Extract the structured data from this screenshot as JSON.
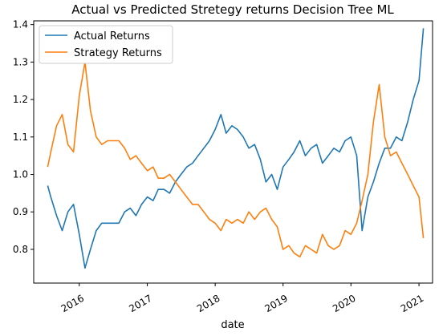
{
  "chart_data": {
    "type": "line",
    "title": "Actual vs Predicted Stretegy returns Decision Tree ML",
    "xlabel": "date",
    "ylabel": "",
    "x_ticks": [
      "2016",
      "2017",
      "2018",
      "2019",
      "2020",
      "2021"
    ],
    "y_ticks": [
      "0.8",
      "0.9",
      "1.0",
      "1.1",
      "1.2",
      "1.3",
      "1.4"
    ],
    "xlim": [
      "2015-05-01",
      "2021-03-15"
    ],
    "ylim": [
      0.71,
      1.41
    ],
    "grid": false,
    "legend_position": "top-left",
    "x": [
      "2015-07-15",
      "2015-08-01",
      "2015-09-01",
      "2015-10-01",
      "2015-11-01",
      "2015-12-01",
      "2016-01-01",
      "2016-02-01",
      "2016-03-01",
      "2016-04-01",
      "2016-05-01",
      "2016-06-01",
      "2016-07-01",
      "2016-08-01",
      "2016-09-01",
      "2016-10-01",
      "2016-11-01",
      "2016-12-01",
      "2017-01-01",
      "2017-02-01",
      "2017-03-01",
      "2017-04-01",
      "2017-05-01",
      "2017-06-01",
      "2017-07-01",
      "2017-08-01",
      "2017-09-01",
      "2017-10-01",
      "2017-11-01",
      "2017-12-01",
      "2018-01-01",
      "2018-02-01",
      "2018-03-01",
      "2018-04-01",
      "2018-05-01",
      "2018-06-01",
      "2018-07-01",
      "2018-08-01",
      "2018-09-01",
      "2018-10-01",
      "2018-11-01",
      "2018-12-01",
      "2019-01-01",
      "2019-02-01",
      "2019-03-01",
      "2019-04-01",
      "2019-05-01",
      "2019-06-01",
      "2019-07-01",
      "2019-08-01",
      "2019-09-01",
      "2019-10-01",
      "2019-11-01",
      "2019-12-01",
      "2020-01-01",
      "2020-02-01",
      "2020-03-01",
      "2020-04-01",
      "2020-05-01",
      "2020-06-01",
      "2020-07-01",
      "2020-08-01",
      "2020-09-01",
      "2020-10-01",
      "2020-11-01",
      "2020-12-01",
      "2021-01-01",
      "2021-01-25"
    ],
    "series": [
      {
        "name": "Actual Returns",
        "color": "#1f77b4",
        "values": [
          0.97,
          0.94,
          0.89,
          0.85,
          0.9,
          0.92,
          0.84,
          0.75,
          0.8,
          0.85,
          0.87,
          0.87,
          0.87,
          0.87,
          0.9,
          0.91,
          0.89,
          0.92,
          0.94,
          0.93,
          0.96,
          0.96,
          0.95,
          0.98,
          1.0,
          1.02,
          1.03,
          1.05,
          1.07,
          1.09,
          1.12,
          1.16,
          1.11,
          1.13,
          1.12,
          1.1,
          1.07,
          1.08,
          1.04,
          0.98,
          1.0,
          0.96,
          1.02,
          1.04,
          1.06,
          1.09,
          1.05,
          1.07,
          1.08,
          1.03,
          1.05,
          1.07,
          1.06,
          1.09,
          1.1,
          1.05,
          0.85,
          0.94,
          0.98,
          1.03,
          1.07,
          1.07,
          1.1,
          1.09,
          1.14,
          1.2,
          1.25,
          1.39
        ]
      },
      {
        "name": "Strategy Returns",
        "color": "#ff7f0e",
        "values": [
          1.02,
          1.06,
          1.13,
          1.16,
          1.08,
          1.06,
          1.21,
          1.3,
          1.17,
          1.1,
          1.08,
          1.09,
          1.09,
          1.09,
          1.07,
          1.04,
          1.05,
          1.03,
          1.01,
          1.02,
          0.99,
          0.99,
          1.0,
          0.98,
          0.96,
          0.94,
          0.92,
          0.92,
          0.9,
          0.88,
          0.87,
          0.85,
          0.88,
          0.87,
          0.88,
          0.87,
          0.9,
          0.88,
          0.9,
          0.91,
          0.88,
          0.86,
          0.8,
          0.81,
          0.79,
          0.78,
          0.81,
          0.8,
          0.79,
          0.84,
          0.81,
          0.8,
          0.81,
          0.85,
          0.84,
          0.87,
          0.93,
          1.0,
          1.14,
          1.24,
          1.1,
          1.05,
          1.06,
          1.03,
          1.0,
          0.97,
          0.94,
          0.83
        ]
      }
    ]
  }
}
